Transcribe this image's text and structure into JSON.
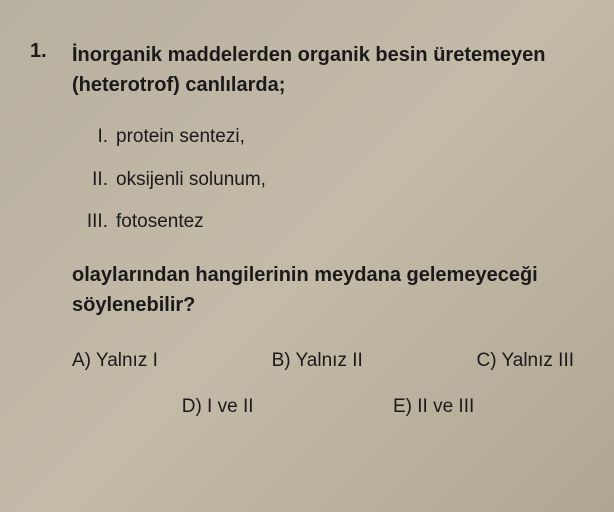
{
  "question": {
    "number": "1.",
    "stem": "İnorganik maddelerden organik besin üretemeyen (heterotrof) canlılarda;",
    "roman_items": [
      {
        "numeral": "I.",
        "text": "protein sentezi,"
      },
      {
        "numeral": "II.",
        "text": "oksijenli solunum,"
      },
      {
        "numeral": "III.",
        "text": "fotosentez"
      }
    ],
    "tail": "olaylarından hangilerinin meydana gelemeyeceği söylenebilir?",
    "options_row1": [
      {
        "label": "A) Yalnız I"
      },
      {
        "label": "B) Yalnız II"
      },
      {
        "label": "C) Yalnız III"
      }
    ],
    "options_row2": [
      {
        "label": "D) I ve II"
      },
      {
        "label": "E) II ve III"
      }
    ]
  },
  "style": {
    "background_gradient": [
      "#b8b0a0",
      "#c4baa8",
      "#b0a694"
    ],
    "text_color": "#1a1a1a",
    "stem_fontsize": 20,
    "item_fontsize": 19,
    "option_fontsize": 19,
    "bold_weight": 700
  }
}
